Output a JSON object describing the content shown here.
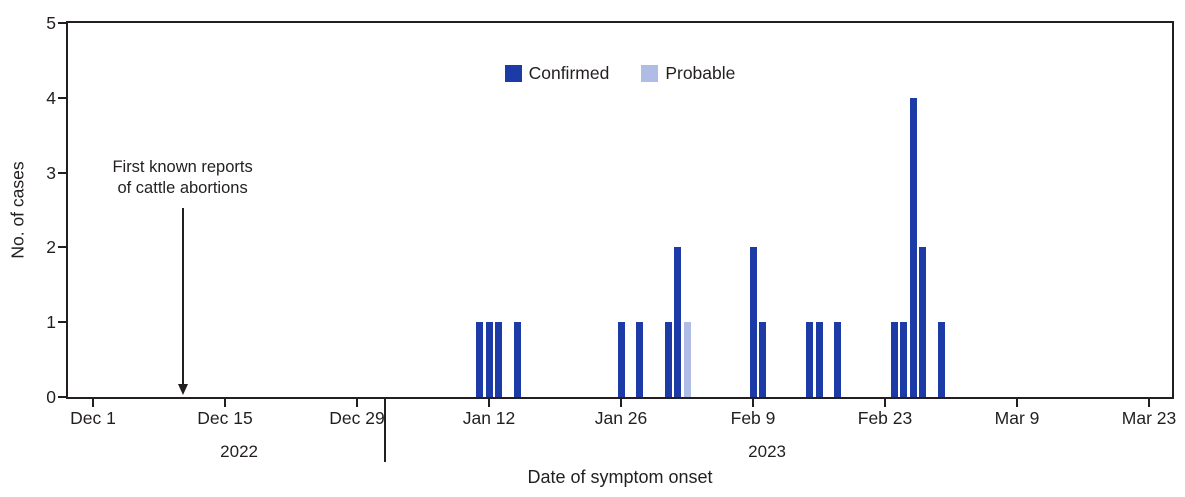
{
  "colors": {
    "confirmed": "#1c3ba6",
    "probable": "#aebce6",
    "axis": "#231f20"
  },
  "legend": [
    {
      "label": "Confirmed",
      "color_key": "confirmed"
    },
    {
      "label": "Probable",
      "color_key": "probable"
    }
  ],
  "y_axis": {
    "title": "No. of cases",
    "ticks": [
      0,
      1,
      2,
      3,
      4,
      5
    ],
    "max": 5
  },
  "x_axis": {
    "title": "Date of symptom onset",
    "ticks": [
      {
        "label": "Dec 1",
        "day": 0
      },
      {
        "label": "Dec 15",
        "day": 14
      },
      {
        "label": "Dec 29",
        "day": 28
      },
      {
        "label": "Jan 12",
        "day": 42
      },
      {
        "label": "Jan 26",
        "day": 56
      },
      {
        "label": "Feb 9",
        "day": 70
      },
      {
        "label": "Feb 23",
        "day": 84
      },
      {
        "label": "Mar 9",
        "day": 98
      },
      {
        "label": "Mar 23",
        "day": 112
      }
    ]
  },
  "year_labels": [
    {
      "text": "2022",
      "day": 15.5
    },
    {
      "text": "2023",
      "day": 71.5
    }
  ],
  "year_divider": {
    "day": 31
  },
  "annotation": {
    "text": "First known reports\nof cattle abortions",
    "day": 9.5
  },
  "chart_data": {
    "type": "bar",
    "title": "",
    "xlabel": "Date of symptom onset",
    "ylabel": "No. of cases",
    "ylim": [
      0,
      5
    ],
    "x_range": [
      "Dec 1, 2022",
      "Mar 23, 2023"
    ],
    "grid": false,
    "legend_position": "top-center",
    "series": [
      {
        "name": "Confirmed",
        "color_key": "confirmed",
        "points": [
          {
            "date": "Jan 11",
            "day": 41,
            "value": 1
          },
          {
            "date": "Jan 12",
            "day": 42,
            "value": 1
          },
          {
            "date": "Jan 13",
            "day": 43,
            "value": 1
          },
          {
            "date": "Jan 15",
            "day": 45,
            "value": 1
          },
          {
            "date": "Jan 26",
            "day": 56,
            "value": 1
          },
          {
            "date": "Jan 28",
            "day": 58,
            "value": 1
          },
          {
            "date": "Jan 31",
            "day": 61,
            "value": 1
          },
          {
            "date": "Feb 1",
            "day": 62,
            "value": 2
          },
          {
            "date": "Feb 9",
            "day": 70,
            "value": 2
          },
          {
            "date": "Feb 10",
            "day": 71,
            "value": 1
          },
          {
            "date": "Feb 15",
            "day": 76,
            "value": 1
          },
          {
            "date": "Feb 16",
            "day": 77,
            "value": 1
          },
          {
            "date": "Feb 18",
            "day": 79,
            "value": 1
          },
          {
            "date": "Feb 24",
            "day": 85,
            "value": 1
          },
          {
            "date": "Feb 25",
            "day": 86,
            "value": 1
          },
          {
            "date": "Feb 26",
            "day": 87,
            "value": 4
          },
          {
            "date": "Feb 27",
            "day": 88,
            "value": 2
          },
          {
            "date": "Mar 1",
            "day": 90,
            "value": 1
          }
        ]
      },
      {
        "name": "Probable",
        "color_key": "probable",
        "points": [
          {
            "date": "Feb 2",
            "day": 63,
            "value": 1
          }
        ]
      }
    ]
  }
}
